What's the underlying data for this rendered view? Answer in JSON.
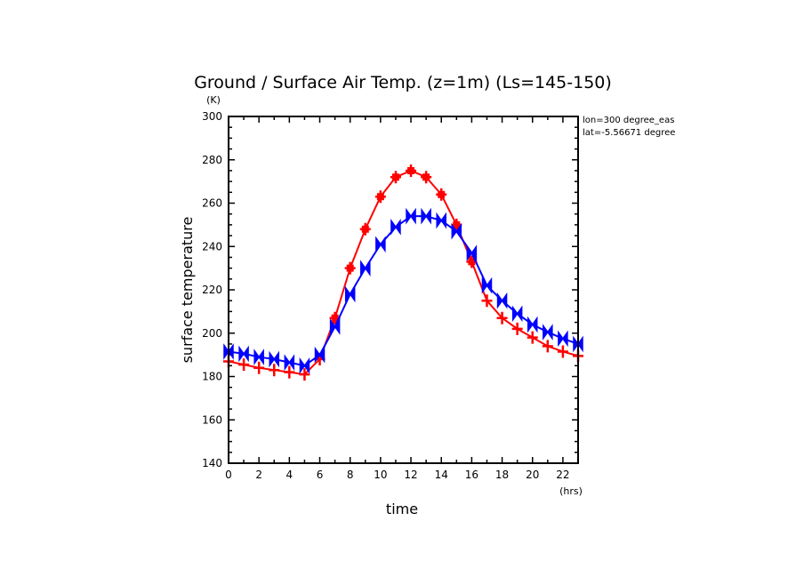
{
  "chart_data": {
    "type": "line",
    "title": "Ground / Surface Air Temp. (z=1m) (Ls=145-150)",
    "xlabel": "time",
    "xunit": "(hrs)",
    "ylabel": "surface temperature",
    "yunit": "(K)",
    "annotations": [
      "lon=300 degree_eas",
      "lat=-5.56671 degree"
    ],
    "xlim": [
      0,
      23
    ],
    "ylim": [
      140,
      300
    ],
    "xticks": [
      0,
      2,
      4,
      6,
      8,
      10,
      12,
      14,
      16,
      18,
      20,
      22
    ],
    "yticks": [
      140,
      160,
      180,
      200,
      220,
      240,
      260,
      280,
      300
    ],
    "grid": false,
    "x": [
      0,
      1,
      2,
      3,
      4,
      5,
      6,
      7,
      8,
      9,
      10,
      11,
      12,
      13,
      14,
      15,
      16,
      17,
      18,
      19,
      20,
      21,
      22,
      23
    ],
    "series": [
      {
        "color": "#ff0000",
        "marker": "plus",
        "values": [
          187,
          185.5,
          184,
          183,
          182,
          181,
          188,
          207,
          230,
          248,
          263,
          272,
          275,
          272,
          264,
          250,
          233,
          215,
          207,
          202,
          198,
          194,
          191.5,
          189.5
        ]
      },
      {
        "color": "#0000ff",
        "marker": "bowtie",
        "values": [
          191.5,
          190.5,
          189,
          188,
          186.5,
          185,
          190,
          203,
          218,
          230,
          241,
          249,
          254,
          254,
          252,
          247,
          237,
          222,
          215,
          209,
          204,
          200.5,
          197.5,
          195
        ]
      }
    ]
  }
}
